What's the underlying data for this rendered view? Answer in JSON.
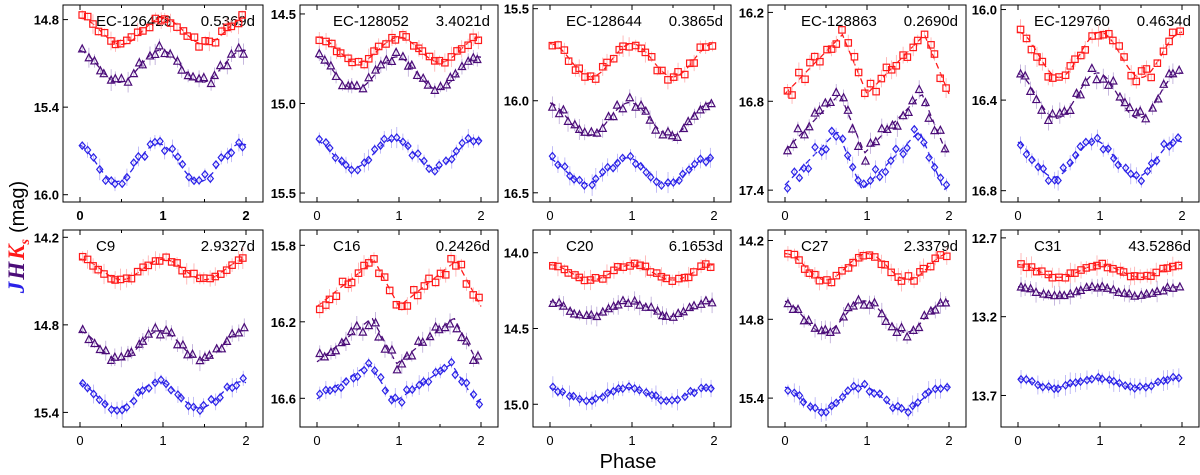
{
  "figure": {
    "xlabel": "Phase",
    "ylabel_bands": [
      "J",
      "H",
      "K"
    ],
    "ylabel_sub": "s",
    "ylabel_unit": "(mag)"
  },
  "chart_data": [
    {
      "type": "scatter",
      "name": "EC-126428",
      "period": "0.5369d",
      "ylim": [
        14.7,
        16.05
      ],
      "yticks": [
        14.8,
        15.4,
        16.0
      ],
      "xticks": [
        0,
        1,
        2
      ],
      "xbold": true,
      "shape": "sin",
      "Kmean": 14.88,
      "Kamp": 0.09,
      "Hmean": 15.12,
      "Hamp": 0.11,
      "Jmean": 15.78,
      "Jamp": 0.13
    },
    {
      "type": "scatter",
      "name": "EC-128052",
      "period": "3.4021d",
      "ylim": [
        14.45,
        15.55
      ],
      "yticks": [
        14.5,
        15.0,
        15.5
      ],
      "xticks": [
        0,
        1,
        2
      ],
      "xbold": false,
      "shape": "sin",
      "Kmean": 14.7,
      "Kamp": 0.07,
      "Hmean": 14.83,
      "Hamp": 0.09,
      "Jmean": 15.28,
      "Jamp": 0.08
    },
    {
      "type": "scatter",
      "name": "EC-128644",
      "period": "0.3865d",
      "ylim": [
        15.48,
        16.55
      ],
      "yticks": [
        15.5,
        16.0,
        16.5
      ],
      "xticks": [
        0,
        1,
        2
      ],
      "xbold": false,
      "shape": "sin",
      "Kmean": 15.78,
      "Kamp": 0.09,
      "Hmean": 16.1,
      "Hamp": 0.09,
      "Jmean": 16.38,
      "Jamp": 0.07
    },
    {
      "type": "scatter",
      "name": "EC-128863",
      "period": "0.2690d",
      "ylim": [
        16.15,
        17.48
      ],
      "yticks": [
        16.2,
        16.8,
        17.4
      ],
      "xticks": [
        0,
        1,
        2
      ],
      "xbold": false,
      "shape": "saw",
      "Kmean": 16.55,
      "Kamp": 0.2,
      "Hmean": 16.95,
      "Hamp": 0.2,
      "Jmean": 17.2,
      "Jamp": 0.2
    },
    {
      "type": "scatter",
      "name": "EC-129760",
      "period": "0.4634d",
      "ylim": [
        15.98,
        16.85
      ],
      "yticks": [
        16.0,
        16.4,
        16.8
      ],
      "xticks": [
        0,
        1,
        2
      ],
      "xbold": false,
      "shape": "sin",
      "Kmean": 16.2,
      "Kamp": 0.1,
      "Hmean": 16.38,
      "Hamp": 0.1,
      "Jmean": 16.66,
      "Jamp": 0.08
    },
    {
      "type": "scatter",
      "name": "C9",
      "period": "2.9327d",
      "ylim": [
        14.15,
        15.5
      ],
      "yticks": [
        14.2,
        14.8,
        15.4
      ],
      "xticks": [
        0,
        1,
        2
      ],
      "xbold": false,
      "shape": "sin",
      "Kmean": 14.42,
      "Kamp": 0.07,
      "Hmean": 14.94,
      "Hamp": 0.1,
      "Jmean": 15.28,
      "Jamp": 0.09
    },
    {
      "type": "scatter",
      "name": "C16",
      "period": "0.2426d",
      "ylim": [
        15.72,
        16.75
      ],
      "yticks": [
        15.8,
        16.2,
        16.6
      ],
      "xticks": [
        0,
        1,
        2
      ],
      "xbold": false,
      "shape": "saw",
      "Kmean": 16.0,
      "Kamp": 0.12,
      "Hmean": 16.3,
      "Hamp": 0.12,
      "Jmean": 16.52,
      "Jamp": 0.1
    },
    {
      "type": "scatter",
      "name": "C20",
      "period": "6.1653d",
      "ylim": [
        13.85,
        15.15
      ],
      "yticks": [
        14.0,
        14.5,
        15.0
      ],
      "xticks": [
        0,
        1,
        2
      ],
      "xbold": false,
      "shape": "sin",
      "Kmean": 14.13,
      "Kamp": 0.05,
      "Hmean": 14.37,
      "Hamp": 0.05,
      "Jmean": 14.93,
      "Jamp": 0.04
    },
    {
      "type": "scatter",
      "name": "C27",
      "period": "2.3379d",
      "ylim": [
        14.12,
        15.62
      ],
      "yticks": [
        14.2,
        14.8,
        15.4
      ],
      "xticks": [
        0,
        1,
        2
      ],
      "xbold": false,
      "shape": "sin",
      "Kmean": 14.4,
      "Kamp": 0.1,
      "Hmean": 14.78,
      "Hamp": 0.12,
      "Jmean": 15.4,
      "Jamp": 0.09
    },
    {
      "type": "scatter",
      "name": "C31",
      "period": "43.5286d",
      "ylim": [
        12.65,
        13.9
      ],
      "yticks": [
        12.7,
        13.2,
        13.7
      ],
      "xticks": [
        0,
        1,
        2
      ],
      "xbold": false,
      "shape": "sin",
      "Kmean": 12.91,
      "Kamp": 0.04,
      "Hmean": 13.04,
      "Hamp": 0.03,
      "Jmean": 13.62,
      "Jamp": 0.03
    }
  ],
  "colors": {
    "K": "#ff1a1a",
    "H": "#4b0c78",
    "J": "#2b22e8",
    "error_K": "#ffaaaa",
    "error_H": "#b9a7d6",
    "error_J": "#b3adf5"
  }
}
